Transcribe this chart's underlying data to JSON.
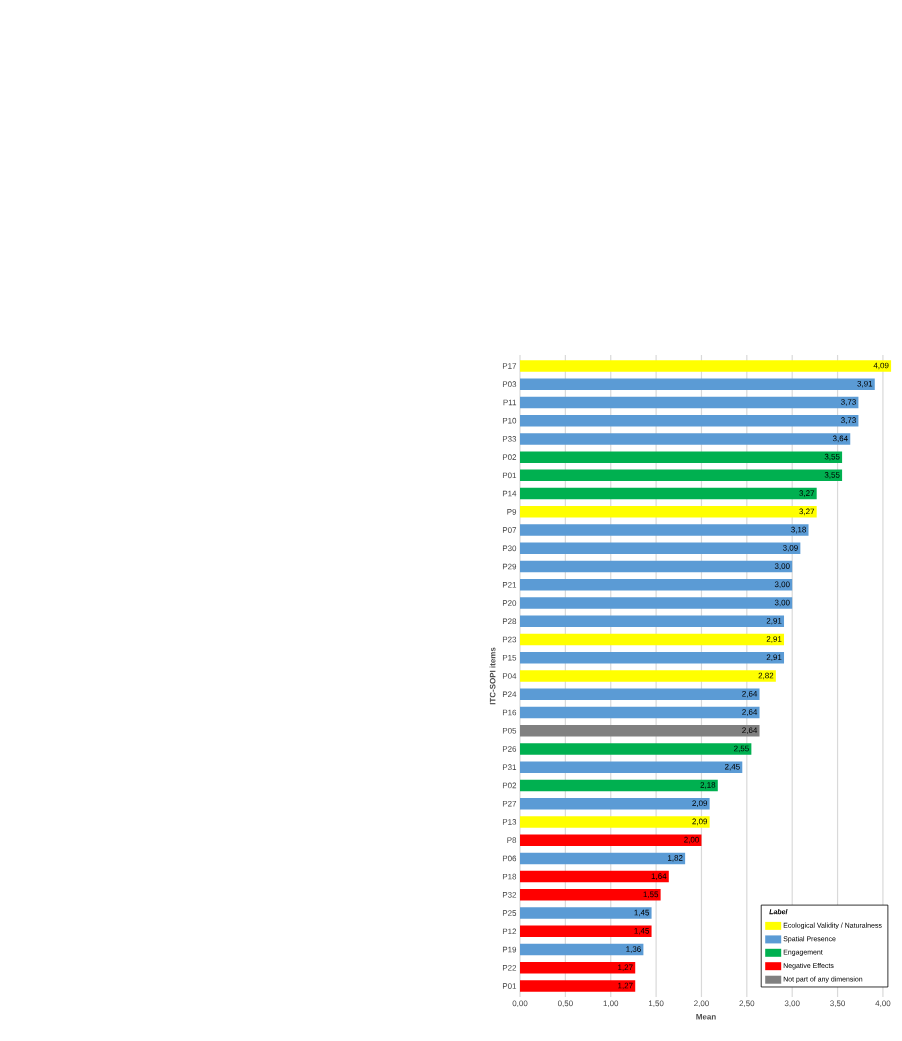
{
  "chart_data": {
    "type": "bar",
    "orientation": "horizontal",
    "xlabel": "Mean",
    "ylabel": "ITC-SOPI items",
    "legend_title": "Label",
    "legend": "bottom right",
    "grid": "x",
    "categories": [
      "P17",
      "P03",
      "P11",
      "P10",
      "P33",
      "P02",
      "P01",
      "P14",
      "P9",
      "P07",
      "P30",
      "P29",
      "P21",
      "P20",
      "P28",
      "P23",
      "P15",
      "P04",
      "P24",
      "P16",
      "P05",
      "P26",
      "P31",
      "P02",
      "P27",
      "P13",
      "P8",
      "P06",
      "P18",
      "P32",
      "P25",
      "P12",
      "P19",
      "P22",
      "P01"
    ],
    "xlim": [
      0,
      4.1
    ],
    "xticks": [
      {
        "value": 0,
        "label": "0,00"
      },
      {
        "value": 0.5,
        "label": "0,50"
      },
      {
        "value": 1,
        "label": "1,00"
      },
      {
        "value": 1.5,
        "label": "1,50"
      },
      {
        "value": 2,
        "label": "2,00"
      },
      {
        "value": 2.5,
        "label": "2,50"
      },
      {
        "value": 3,
        "label": "3,00"
      },
      {
        "value": 3.5,
        "label": "3,50"
      },
      {
        "value": 4,
        "label": "4,00"
      }
    ],
    "series": [
      {
        "name": "Ecological Validity / Naturalness",
        "color": "#ffff00",
        "values": [
          4.09,
          null,
          null,
          null,
          null,
          null,
          null,
          null,
          3.27,
          null,
          null,
          null,
          null,
          null,
          null,
          2.91,
          null,
          2.82,
          null,
          null,
          null,
          null,
          null,
          null,
          null,
          2.09,
          null,
          null,
          null,
          null,
          null,
          null,
          null,
          null,
          null
        ],
        "value_labels": [
          "4,09",
          null,
          null,
          null,
          null,
          null,
          null,
          null,
          "3,27",
          null,
          null,
          null,
          null,
          null,
          null,
          "2,91",
          null,
          "2,82",
          null,
          null,
          null,
          null,
          null,
          null,
          null,
          "2,09",
          null,
          null,
          null,
          null,
          null,
          null,
          null,
          null,
          null
        ]
      },
      {
        "name": "Spatial Presence",
        "color": "#5b9bd5",
        "values": [
          null,
          3.91,
          3.73,
          3.73,
          3.64,
          null,
          null,
          null,
          null,
          3.18,
          3.09,
          3.0,
          3.0,
          3.0,
          2.91,
          null,
          2.91,
          null,
          2.64,
          2.64,
          null,
          null,
          2.45,
          null,
          2.09,
          null,
          null,
          1.82,
          null,
          null,
          1.45,
          null,
          1.36,
          null,
          null
        ],
        "value_labels": [
          null,
          "3,91",
          "3,73",
          "3,73",
          "3,64",
          null,
          null,
          null,
          null,
          "3,18",
          "3,09",
          "3,00",
          "3,00",
          "3,00",
          "2,91",
          null,
          "2,91",
          null,
          "2,64",
          "2,64",
          null,
          null,
          "2,45",
          null,
          "2,09",
          null,
          null,
          "1,82",
          null,
          null,
          "1,45",
          null,
          "1,36",
          null,
          null
        ]
      },
      {
        "name": "Engagement",
        "color": "#00b050",
        "values": [
          null,
          null,
          null,
          null,
          null,
          3.55,
          3.55,
          3.27,
          null,
          null,
          null,
          null,
          null,
          null,
          null,
          null,
          null,
          null,
          null,
          null,
          null,
          2.55,
          null,
          2.18,
          null,
          null,
          null,
          null,
          null,
          null,
          null,
          null,
          null,
          null,
          null
        ],
        "value_labels": [
          null,
          null,
          null,
          null,
          null,
          "3,55",
          "3,55",
          "3,27",
          null,
          null,
          null,
          null,
          null,
          null,
          null,
          null,
          null,
          null,
          null,
          null,
          null,
          "2,55",
          null,
          "2,18",
          null,
          null,
          null,
          null,
          null,
          null,
          null,
          null,
          null,
          null,
          null
        ]
      },
      {
        "name": "Negative Effects",
        "color": "#ff0000",
        "values": [
          null,
          null,
          null,
          null,
          null,
          null,
          null,
          null,
          null,
          null,
          null,
          null,
          null,
          null,
          null,
          null,
          null,
          null,
          null,
          null,
          null,
          null,
          null,
          null,
          null,
          null,
          2.0,
          null,
          1.64,
          1.55,
          null,
          1.45,
          null,
          1.27,
          1.27
        ],
        "value_labels": [
          null,
          null,
          null,
          null,
          null,
          null,
          null,
          null,
          null,
          null,
          null,
          null,
          null,
          null,
          null,
          null,
          null,
          null,
          null,
          null,
          null,
          null,
          null,
          null,
          null,
          null,
          "2,00",
          null,
          "1,64",
          "1,55",
          null,
          "1,45",
          null,
          "1,27",
          "1,27"
        ]
      },
      {
        "name": "Not part of any dimension",
        "color": "#808080",
        "values": [
          null,
          null,
          null,
          null,
          null,
          null,
          null,
          null,
          null,
          null,
          null,
          null,
          null,
          null,
          null,
          null,
          null,
          null,
          null,
          null,
          2.64,
          null,
          null,
          null,
          null,
          null,
          null,
          null,
          null,
          null,
          null,
          null,
          null,
          null,
          null
        ],
        "value_labels": [
          null,
          null,
          null,
          null,
          null,
          null,
          null,
          null,
          null,
          null,
          null,
          null,
          null,
          null,
          null,
          null,
          null,
          null,
          null,
          null,
          "2,64",
          null,
          null,
          null,
          null,
          null,
          null,
          null,
          null,
          null,
          null,
          null,
          null,
          null,
          null
        ]
      }
    ]
  }
}
